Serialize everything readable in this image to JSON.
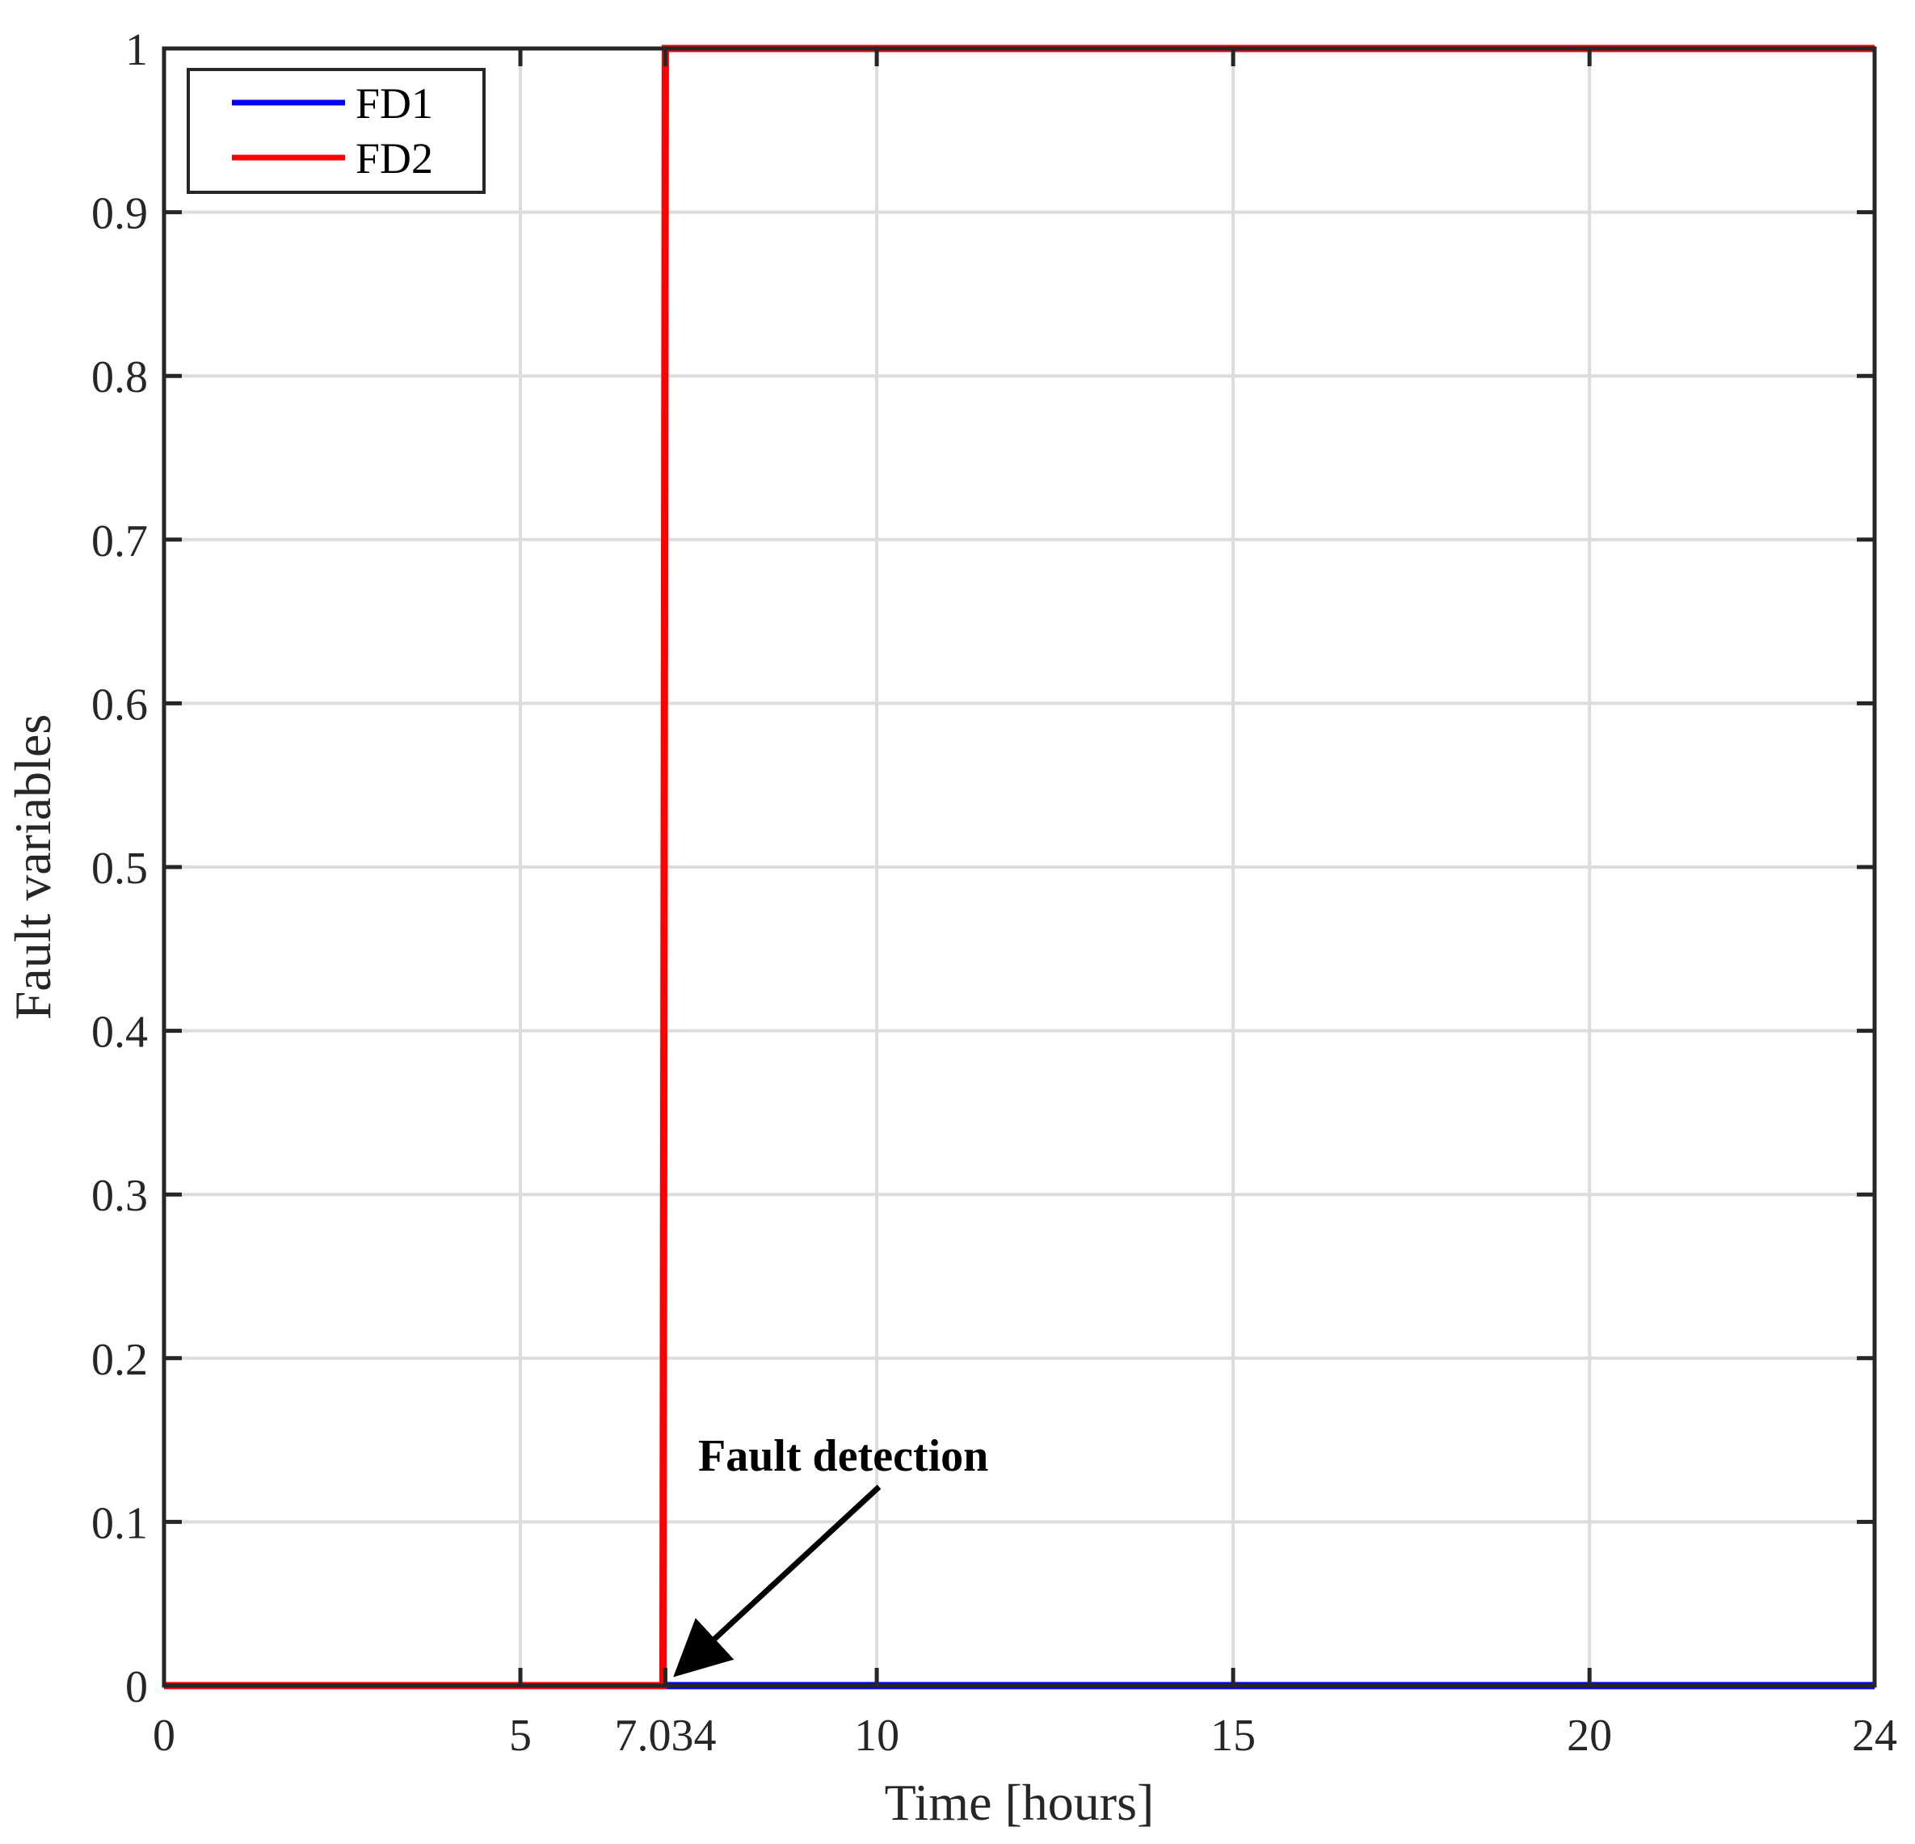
{
  "chart_data": {
    "type": "line",
    "title": "",
    "xlabel": "Time [hours]",
    "ylabel": "Fault variables",
    "xlim": [
      0,
      24
    ],
    "ylim": [
      0,
      1
    ],
    "xticks": [
      0,
      5,
      7.034,
      10,
      15,
      20,
      24
    ],
    "xtick_labels": [
      "0",
      "5",
      "7.034",
      "10",
      "15",
      "20",
      "24"
    ],
    "yticks": [
      0,
      0.1,
      0.2,
      0.3,
      0.4,
      0.5,
      0.6,
      0.7,
      0.8,
      0.9,
      1
    ],
    "ytick_labels": [
      "0",
      "0.1",
      "0.2",
      "0.3",
      "0.4",
      "0.5",
      "0.6",
      "0.7",
      "0.8",
      "0.9",
      "1"
    ],
    "grid": true,
    "legend_position": "top-left",
    "series": [
      {
        "name": "FD1",
        "color": "#0000ff",
        "x": [
          0,
          24
        ],
        "y": [
          0,
          0
        ]
      },
      {
        "name": "FD2",
        "color": "#ff0000",
        "x": [
          0,
          7.0,
          7.034,
          24
        ],
        "y": [
          0,
          0,
          1,
          1
        ]
      }
    ],
    "annotation": {
      "text": "Fault detection",
      "point": [
        7.034,
        0
      ]
    }
  }
}
